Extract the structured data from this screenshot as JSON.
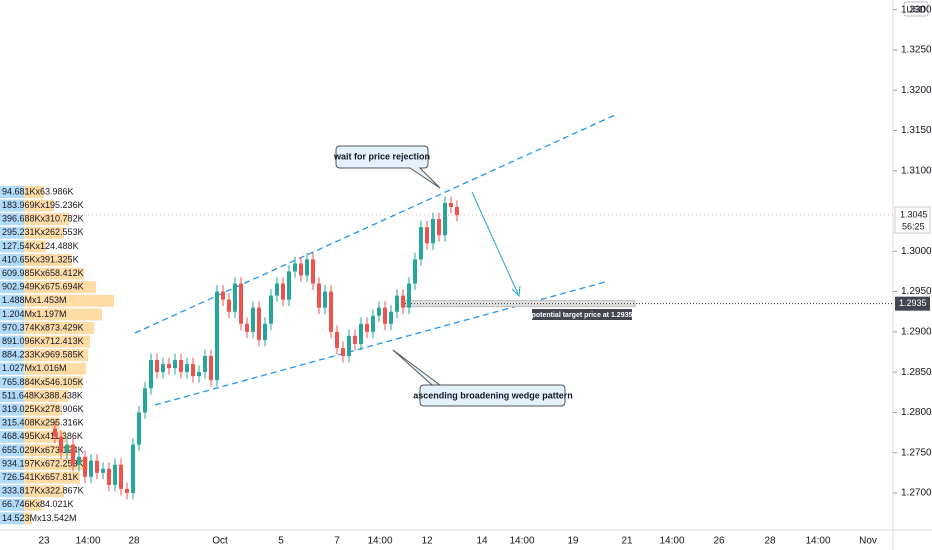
{
  "chart_data": {
    "type": "candlestick",
    "currency": "USD",
    "ylim": [
      1.2654,
      1.3312
    ],
    "yticks": [
      {
        "value": 1.27,
        "label": "1.2700"
      },
      {
        "value": 1.275,
        "label": "1.2750"
      },
      {
        "value": 1.28,
        "label": "1.2800"
      },
      {
        "value": 1.285,
        "label": "1.2850"
      },
      {
        "value": 1.29,
        "label": "1.2900"
      },
      {
        "value": 1.295,
        "label": "1.2950"
      },
      {
        "value": 1.3,
        "label": "1.3000"
      },
      {
        "value": 1.31,
        "label": "1.3100"
      },
      {
        "value": 1.315,
        "label": "1.3150"
      },
      {
        "value": 1.32,
        "label": "1.3200"
      },
      {
        "value": 1.325,
        "label": "1.3250"
      },
      {
        "value": 1.33,
        "label": "1.3300"
      }
    ],
    "xtick_labels": [
      "23",
      "14:00",
      "28",
      "Oct",
      "5",
      "7",
      "14:00",
      "12",
      "14",
      "14:00",
      "19",
      "21",
      "14:00",
      "26",
      "28",
      "14:00",
      "Nov"
    ],
    "up_color": "#26a69a",
    "down_color": "#ef5350",
    "open": [
      1.278,
      1.277,
      1.275,
      1.276,
      1.2735,
      1.2745,
      1.272,
      1.274,
      1.2725,
      1.273,
      1.271,
      1.2735,
      1.2705,
      1.27,
      1.276,
      1.28,
      1.283,
      1.2865,
      1.285,
      1.286,
      1.2855,
      1.2865,
      1.285,
      1.286,
      1.2845,
      1.285,
      1.287,
      1.284,
      1.295,
      1.294,
      1.2925,
      1.296,
      1.291,
      1.29,
      1.293,
      1.289,
      1.291,
      1.2945,
      1.296,
      1.294,
      1.2975,
      1.2985,
      1.297,
      1.299,
      1.296,
      1.293,
      1.295,
      1.29,
      1.288,
      1.287,
      1.2895,
      1.2885,
      1.291,
      1.29,
      1.292,
      1.293,
      1.291,
      1.2925,
      1.2945,
      1.293,
      1.296,
      1.299,
      1.303,
      1.301,
      1.304,
      1.302,
      1.306,
      1.3055
    ],
    "high": [
      1.2788,
      1.2778,
      1.2768,
      1.2768,
      1.2753,
      1.2753,
      1.2748,
      1.2748,
      1.2738,
      1.2738,
      1.2743,
      1.2743,
      1.2713,
      1.2768,
      1.2808,
      1.2838,
      1.2873,
      1.2873,
      1.2868,
      1.2868,
      1.2873,
      1.2873,
      1.2868,
      1.2868,
      1.2858,
      1.2878,
      1.2878,
      1.2958,
      1.2958,
      1.2948,
      1.2968,
      1.2968,
      1.2918,
      1.2938,
      1.2938,
      1.2918,
      1.2953,
      1.2968,
      1.2968,
      1.2983,
      1.2993,
      1.2993,
      1.2998,
      1.2998,
      1.2968,
      1.2958,
      1.2958,
      1.2908,
      1.2888,
      1.2903,
      1.2903,
      1.2918,
      1.2918,
      1.2928,
      1.2938,
      1.2938,
      1.2933,
      1.2953,
      1.2953,
      1.2968,
      1.2998,
      1.3038,
      1.3038,
      1.3048,
      1.3048,
      1.3068,
      1.3068,
      1.3063
    ],
    "low": [
      1.2762,
      1.2742,
      1.2742,
      1.2727,
      1.2727,
      1.2712,
      1.2712,
      1.2717,
      1.2717,
      1.2702,
      1.2702,
      1.2697,
      1.2692,
      1.2692,
      1.2752,
      1.2792,
      1.2822,
      1.2842,
      1.2842,
      1.2847,
      1.2847,
      1.2842,
      1.2842,
      1.2837,
      1.2837,
      1.2842,
      1.2832,
      1.2832,
      1.2932,
      1.2917,
      1.2917,
      1.2902,
      1.2892,
      1.2892,
      1.2882,
      1.2882,
      1.2902,
      1.2937,
      1.2932,
      1.2932,
      1.2967,
      1.2962,
      1.2962,
      1.2952,
      1.2922,
      1.2922,
      1.2892,
      1.2872,
      1.2862,
      1.2862,
      1.2877,
      1.2877,
      1.2892,
      1.2892,
      1.2912,
      1.2902,
      1.2902,
      1.2917,
      1.2922,
      1.2922,
      1.2952,
      1.2982,
      1.3002,
      1.3002,
      1.3012,
      1.3012,
      1.3047,
      1.3037
    ],
    "close": [
      1.277,
      1.275,
      1.276,
      1.2735,
      1.2745,
      1.272,
      1.274,
      1.2725,
      1.273,
      1.271,
      1.2735,
      1.2705,
      1.27,
      1.276,
      1.28,
      1.283,
      1.2865,
      1.285,
      1.286,
      1.2855,
      1.2865,
      1.285,
      1.286,
      1.2845,
      1.285,
      1.287,
      1.284,
      1.295,
      1.294,
      1.2925,
      1.296,
      1.291,
      1.29,
      1.293,
      1.289,
      1.291,
      1.2945,
      1.296,
      1.294,
      1.2975,
      1.2985,
      1.297,
      1.299,
      1.296,
      1.293,
      1.295,
      1.29,
      1.288,
      1.287,
      1.2895,
      1.2885,
      1.291,
      1.29,
      1.292,
      1.293,
      1.291,
      1.2925,
      1.2945,
      1.293,
      1.296,
      1.299,
      1.303,
      1.301,
      1.304,
      1.302,
      1.306,
      1.3055,
      1.3045
    ],
    "last_price": {
      "value": 1.3045,
      "label": "1.3045"
    },
    "countdown": "56:25",
    "target": {
      "value": 1.2935,
      "label": "1.2935"
    },
    "annotations": [
      "wait for price rejection",
      "ascending broadening wedge pattern",
      "potential target price at 1.2935"
    ],
    "volume_profile": [
      "94.681Kx63.986K",
      "183.969Kx195.236K",
      "396.688Kx310.782K",
      "295.231Kx262.553K",
      "127.54Kx124.488K",
      "410.65Kx391.325K",
      "609.985Kx658.412K",
      "902.949Kx675.694K",
      "1.488Mx1.453M",
      "1.204Mx1.197M",
      "970.374Kx873.429K",
      "891.096Kx712.413K",
      "884.233Kx969.585K",
      "1.027Mx1.016M",
      "765.884Kx546.105K",
      "511.648Kx388.438K",
      "319.025Kx278.906K",
      "315.408Kx295.316K",
      "468.495Kx411.386K",
      "655.029Kx673.124K",
      "934.197Kx672.253K",
      "726.541Kx657.81K",
      "333.817Kx322.867K",
      "66.746Kx84.021K",
      "14.523Mx13.542M"
    ]
  }
}
